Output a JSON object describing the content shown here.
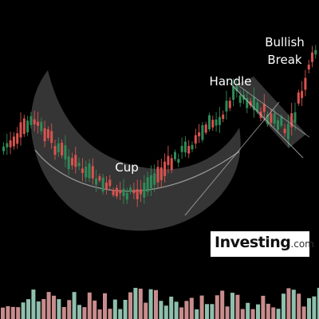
{
  "chart_data": {
    "type": "candlestick",
    "pattern": "cup-and-handle",
    "up_color": "#2e8b57",
    "down_color": "#d9534f",
    "volume_up_color": "#8fbfad",
    "volume_down_color": "#c98c8c",
    "annotations": {
      "cup": "Cup",
      "handle": "Handle",
      "breakout_line1": "Bullish",
      "breakout_line2": "Break"
    },
    "watermark": {
      "brand": "Investing",
      "tld": ".com"
    }
  }
}
